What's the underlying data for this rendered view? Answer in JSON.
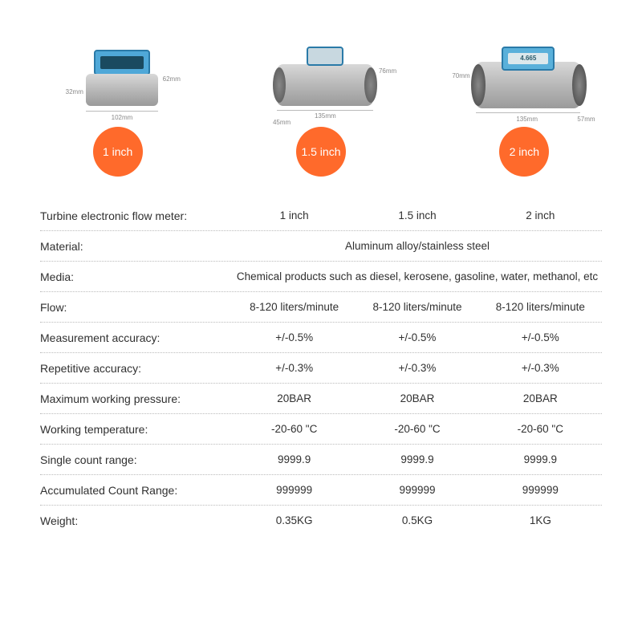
{
  "colors": {
    "badge_bg": "#ff6a2b",
    "badge_text": "#ffffff",
    "text": "#303030",
    "row_border": "#bbbbbb",
    "dim_text": "#888888",
    "display_blue": "#4fa8d8",
    "body_metal": "#b8b8b8"
  },
  "products": [
    {
      "badge": "1 inch",
      "dims": {
        "width": "102mm",
        "height_left": "32mm",
        "height_right": "62mm"
      }
    },
    {
      "badge": "1.5 inch",
      "dims": {
        "width": "135mm",
        "height_right": "76mm",
        "depth_bottom": "45mm"
      }
    },
    {
      "badge": "2 inch",
      "dims": {
        "width": "135mm",
        "height_left": "70mm",
        "depth_bottom": "57mm"
      },
      "lcd_reading": "4.665"
    }
  ],
  "spec_table": {
    "header_label": "Turbine electronic flow meter:",
    "header_cols": [
      "1 inch",
      "1.5 inch",
      "2 inch"
    ],
    "rows": [
      {
        "label": "Material:",
        "merged": "Aluminum alloy/stainless steel"
      },
      {
        "label": "Media:",
        "merged": "Chemical products such as diesel, kerosene, gasoline, water, methanol, etc"
      },
      {
        "label": "Flow:",
        "cols": [
          "8-120 liters/minute",
          "8-120 liters/minute",
          "8-120 liters/minute"
        ]
      },
      {
        "label": "Measurement accuracy:",
        "cols": [
          "+/-0.5%",
          "+/-0.5%",
          "+/-0.5%"
        ]
      },
      {
        "label": "Repetitive accuracy:",
        "cols": [
          "+/-0.3%",
          "+/-0.3%",
          "+/-0.3%"
        ]
      },
      {
        "label": "Maximum working pressure:",
        "cols": [
          "20BAR",
          "20BAR",
          "20BAR"
        ]
      },
      {
        "label": "Working temperature:",
        "cols": [
          "-20-60 \"C",
          "-20-60 \"C",
          "-20-60 \"C"
        ]
      },
      {
        "label": "Single count range:",
        "cols": [
          "9999.9",
          "9999.9",
          "9999.9"
        ]
      },
      {
        "label": "Accumulated Count Range:",
        "cols": [
          "999999",
          "999999",
          "999999"
        ]
      },
      {
        "label": "Weight:",
        "cols": [
          "0.35KG",
          "0.5KG",
          "1KG"
        ]
      }
    ]
  }
}
